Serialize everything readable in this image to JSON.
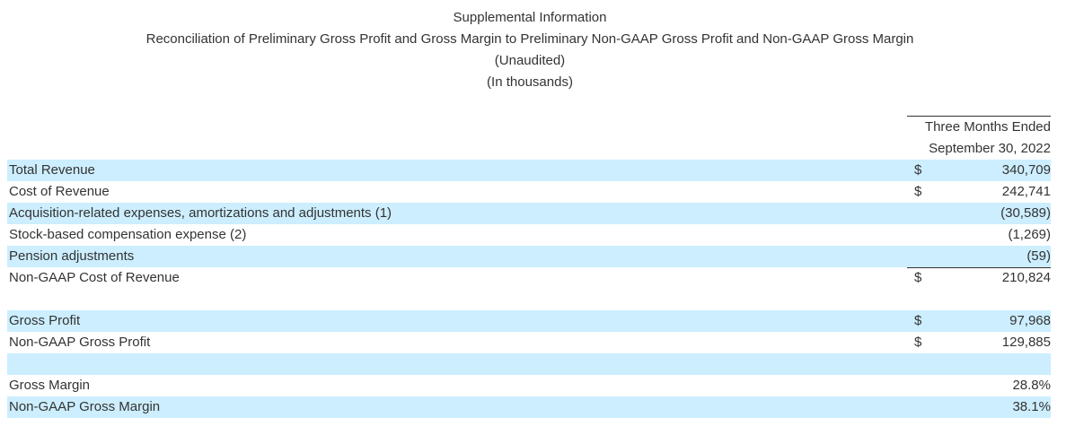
{
  "header": {
    "line1": "Supplemental Information",
    "line2": "Reconciliation of Preliminary Gross Profit and Gross Margin to Preliminary Non-GAAP Gross Profit and Non-GAAP Gross Margin",
    "line3": "(Unaudited)",
    "line4": "(In thousands)"
  },
  "column_header": {
    "line1": "Three Months Ended",
    "line2": "September 30, 2022"
  },
  "rows": [
    {
      "label": "Total Revenue",
      "currency": "$",
      "value": "340,709"
    },
    {
      "label": "Cost of Revenue",
      "currency": "$",
      "value": "242,741"
    },
    {
      "label": "Acquisition-related expenses, amortizations and adjustments (1)",
      "currency": "",
      "value": "(30,589)"
    },
    {
      "label": "Stock-based compensation expense (2)",
      "currency": "",
      "value": "(1,269)"
    },
    {
      "label": "Pension adjustments",
      "currency": "",
      "value": "(59)"
    },
    {
      "label": "Non-GAAP Cost of Revenue",
      "currency": "$",
      "value": "210,824"
    },
    {
      "label": "Gross Profit",
      "currency": "$",
      "value": "97,968"
    },
    {
      "label": "Non-GAAP Gross Profit",
      "currency": "$",
      "value": "129,885"
    },
    {
      "label": "Gross Margin",
      "currency": "",
      "value": "28.8%"
    },
    {
      "label": "Non-GAAP Gross Margin",
      "currency": "",
      "value": "38.1%"
    }
  ],
  "colors": {
    "row_shade": "#cceeff",
    "text": "#333333"
  }
}
